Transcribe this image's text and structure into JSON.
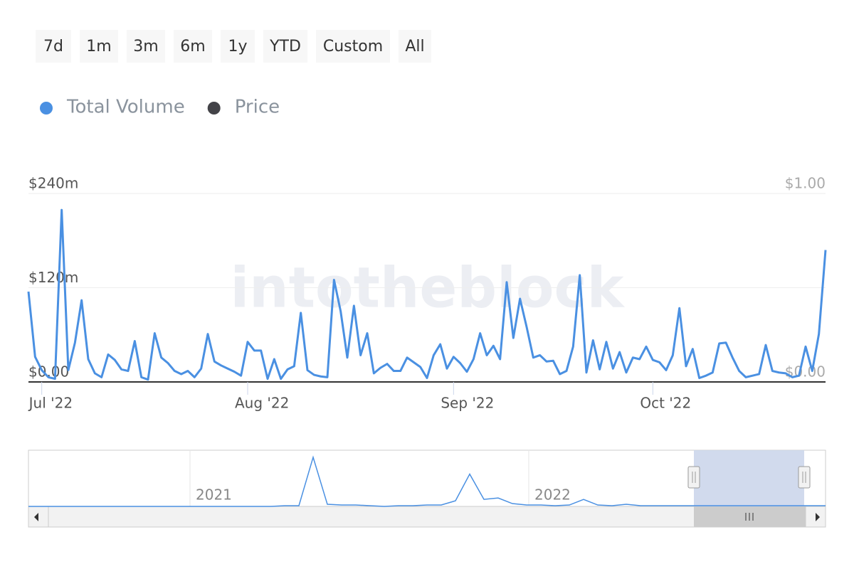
{
  "chart_data": {
    "type": "line",
    "range_buttons": [
      "7d",
      "1m",
      "3m",
      "6m",
      "1y",
      "YTD",
      "Custom",
      "All"
    ],
    "watermark": "intotheblock",
    "series": [
      {
        "name": "Total Volume",
        "color": "#4a90e2",
        "values": [
          115,
          32,
          15,
          6,
          4,
          219,
          15,
          50,
          104,
          29,
          11,
          6,
          35,
          28,
          16,
          14,
          52,
          6,
          3,
          62,
          31,
          24,
          14,
          10,
          14,
          6,
          17,
          61,
          26,
          21,
          17,
          13,
          8,
          51,
          40,
          40,
          4,
          29,
          4,
          16,
          20,
          88,
          15,
          9,
          7,
          6,
          130,
          90,
          31,
          97,
          34,
          62,
          11,
          18,
          23,
          14,
          14,
          31,
          25,
          19,
          5,
          34,
          48,
          17,
          32,
          24,
          13,
          29,
          62,
          34,
          46,
          29,
          127,
          56,
          106,
          70,
          31,
          34,
          26,
          27,
          10,
          14,
          45,
          136,
          12,
          53,
          16,
          51,
          17,
          38,
          12,
          31,
          29,
          45,
          28,
          25,
          15,
          34,
          94,
          20,
          42,
          5,
          8,
          12,
          49,
          50,
          31,
          14,
          6,
          8,
          10,
          47,
          14,
          12,
          11,
          6,
          8,
          45,
          14,
          61,
          168
        ]
      },
      {
        "name": "Price",
        "color": "#434348",
        "axis": "y2"
      }
    ],
    "xlim": [
      0,
      120
    ],
    "xticks": [
      {
        "value": 2,
        "label": "Jul '22"
      },
      {
        "value": 33,
        "label": "Aug '22"
      },
      {
        "value": 64,
        "label": "Sep '22"
      },
      {
        "value": 94,
        "label": "Oct '22"
      }
    ],
    "ylim": [
      0,
      240
    ],
    "yticks": [
      {
        "value": 0,
        "label": "$0.00"
      },
      {
        "value": 120,
        "label": "$120m"
      },
      {
        "value": 240,
        "label": "$240m"
      }
    ],
    "y2lim": [
      0,
      1
    ],
    "y2ticks": [
      {
        "value": 0,
        "label": "$0.00"
      },
      {
        "value": 1,
        "label": "$1.00"
      }
    ],
    "grid": true,
    "navigator": {
      "labels": [
        "2021",
        "2022"
      ],
      "ylim": [
        0,
        80
      ],
      "values": [
        0,
        0,
        0,
        0,
        0,
        0,
        0,
        0,
        0,
        0,
        0,
        0,
        0,
        0,
        0,
        0,
        0,
        0,
        1,
        1,
        70,
        3,
        2,
        2,
        1,
        0,
        1,
        1,
        2,
        2,
        8,
        46,
        10,
        12,
        4,
        2,
        2,
        1,
        2,
        10,
        2,
        1,
        3,
        1,
        1,
        1,
        1,
        1,
        1,
        1,
        1,
        1,
        1,
        1,
        1,
        1,
        1
      ]
    }
  }
}
